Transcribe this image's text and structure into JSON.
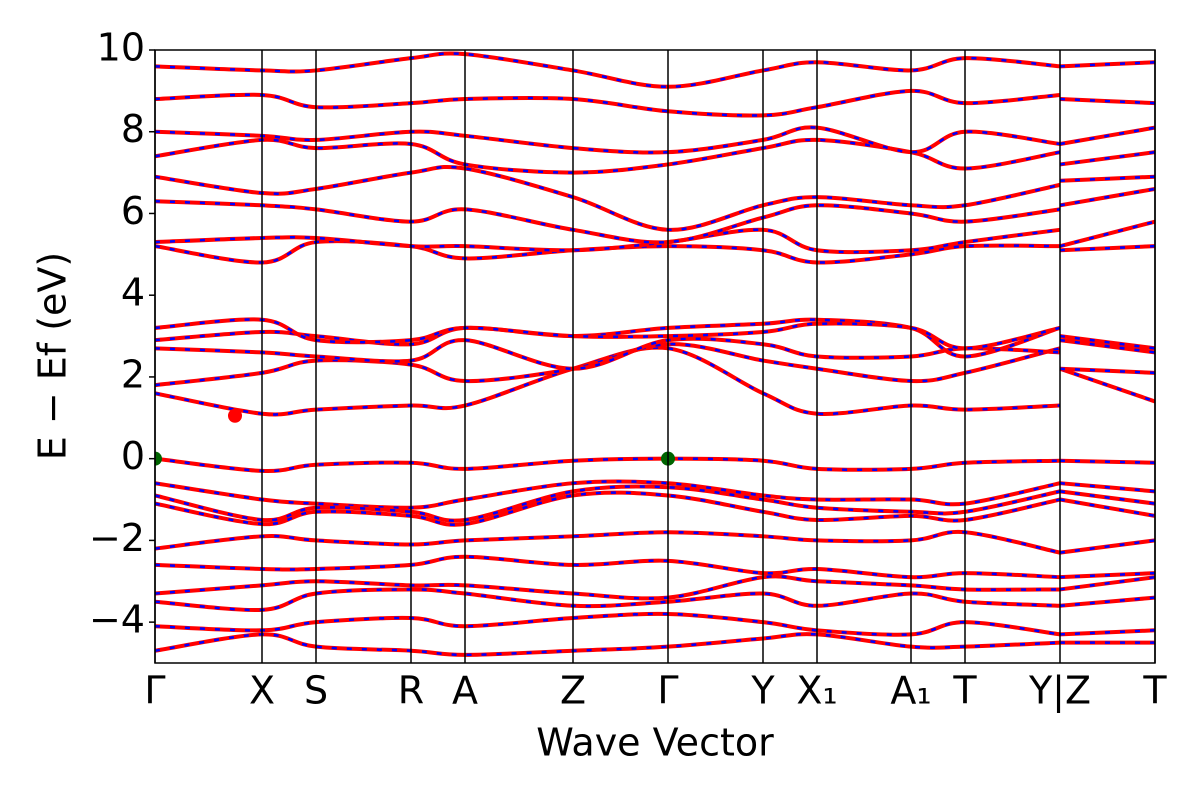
{
  "chart_data": {
    "type": "band",
    "xlabel": "Wave Vector",
    "ylabel": "E − Ef (eV)",
    "xlim": [
      0,
      10
    ],
    "ylim": [
      -5,
      10
    ],
    "yticks": [
      {
        "value": -4,
        "label": "−4"
      },
      {
        "value": -2,
        "label": "−2"
      },
      0,
      2,
      4,
      6,
      8,
      10
    ],
    "xticks": [
      {
        "value": 0,
        "label": "Γ"
      },
      {
        "value": 1.07,
        "label": "X"
      },
      {
        "value": 1.61,
        "label": "S"
      },
      {
        "value": 2.56,
        "label": "R"
      },
      {
        "value": 3.1,
        "label": "A"
      },
      {
        "value": 4.18,
        "label": "Z"
      },
      {
        "value": 5.13,
        "label": "Γ"
      },
      {
        "value": 6.08,
        "label": "Y"
      },
      {
        "value": 6.62,
        "label": "X₁"
      },
      {
        "value": 7.56,
        "label": "A₁"
      },
      {
        "value": 8.1,
        "label": "T"
      },
      {
        "value": 9.05,
        "label": "Y|Z"
      },
      {
        "value": 10,
        "label": "T"
      }
    ],
    "line_color": "#ff0000",
    "dash_color": "#0000ff",
    "x": [
      0,
      1.07,
      1.61,
      2.56,
      3.1,
      4.18,
      5.13,
      6.08,
      6.62,
      7.56,
      8.1,
      9.05,
      9.05,
      10
    ],
    "series": [
      {
        "values": [
          0,
          -0.3,
          -0.15,
          -0.1,
          -0.25,
          -0.05,
          0,
          -0.05,
          -0.25,
          -0.25,
          -0.1,
          -0.05,
          -0.05,
          -0.1
        ]
      },
      {
        "values": [
          -0.6,
          -1.0,
          -1.1,
          -1.2,
          -1.0,
          -0.6,
          -0.6,
          -0.9,
          -1.0,
          -1.0,
          -1.1,
          -0.6,
          -0.6,
          -0.8
        ]
      },
      {
        "values": [
          -0.9,
          -1.5,
          -1.2,
          -1.3,
          -1.5,
          -0.8,
          -0.7,
          -1.0,
          -1.2,
          -1.3,
          -1.3,
          -0.8,
          -0.8,
          -1.1
        ]
      },
      {
        "values": [
          -1.1,
          -1.6,
          -1.3,
          -1.4,
          -1.6,
          -0.9,
          -0.9,
          -1.3,
          -1.5,
          -1.4,
          -1.5,
          -1.0,
          -1.0,
          -1.4
        ]
      },
      {
        "values": [
          -2.2,
          -1.9,
          -2.0,
          -2.1,
          -2.0,
          -1.9,
          -1.8,
          -1.9,
          -2.0,
          -2.0,
          -1.8,
          -2.3,
          -2.3,
          -2.0
        ]
      },
      {
        "values": [
          -2.6,
          -2.7,
          -2.7,
          -2.6,
          -2.4,
          -2.6,
          -2.5,
          -2.8,
          -2.7,
          -2.9,
          -2.8,
          -2.9,
          -2.9,
          -2.8
        ]
      },
      {
        "values": [
          -3.3,
          -3.1,
          -3.0,
          -3.1,
          -3.1,
          -3.3,
          -3.4,
          -2.9,
          -3.0,
          -3.1,
          -3.2,
          -3.2,
          -3.2,
          -2.9
        ]
      },
      {
        "values": [
          -3.5,
          -3.7,
          -3.3,
          -3.2,
          -3.3,
          -3.6,
          -3.5,
          -3.3,
          -3.6,
          -3.3,
          -3.5,
          -3.6,
          -3.6,
          -3.4
        ]
      },
      {
        "values": [
          -4.1,
          -4.2,
          -4.0,
          -3.9,
          -4.1,
          -3.9,
          -3.8,
          -4.0,
          -4.2,
          -4.3,
          -4.0,
          -4.3,
          -4.3,
          -4.2
        ]
      },
      {
        "values": [
          -4.7,
          -4.3,
          -4.6,
          -4.7,
          -4.8,
          -4.7,
          -4.6,
          -4.4,
          -4.3,
          -4.6,
          -4.6,
          -4.5,
          -4.5,
          -4.5
        ]
      },
      {
        "values": [
          1.6,
          1.1,
          1.2,
          1.3,
          1.3,
          2.2,
          2.7,
          1.6,
          1.1,
          1.3,
          1.2,
          1.3,
          2.2,
          1.4
        ]
      },
      {
        "values": [
          1.8,
          2.1,
          2.4,
          2.3,
          1.9,
          2.2,
          2.8,
          2.4,
          2.2,
          1.9,
          2.1,
          2.7,
          2.2,
          2.1
        ]
      },
      {
        "values": [
          2.7,
          2.6,
          2.5,
          2.4,
          2.9,
          2.2,
          2.9,
          2.8,
          2.5,
          2.5,
          2.7,
          2.6,
          2.9,
          2.7
        ]
      },
      {
        "values": [
          2.9,
          3.1,
          3.0,
          2.8,
          3.2,
          3.0,
          3.2,
          3.3,
          3.4,
          3.2,
          2.5,
          3.2,
          3.0,
          2.7
        ]
      },
      {
        "values": [
          3.2,
          3.4,
          2.9,
          2.9,
          3.2,
          3.0,
          3.0,
          3.1,
          3.3,
          3.2,
          2.7,
          3.2,
          2.9,
          2.6
        ]
      },
      {
        "values": [
          5.2,
          4.8,
          5.3,
          5.2,
          4.9,
          5.1,
          5.2,
          5.1,
          4.8,
          5.0,
          5.2,
          5.2,
          5.1,
          5.2
        ]
      },
      {
        "values": [
          5.3,
          5.4,
          5.4,
          5.2,
          5.2,
          5.1,
          5.3,
          5.6,
          5.1,
          5.1,
          5.3,
          5.6,
          5.2,
          5.8
        ]
      },
      {
        "values": [
          6.3,
          6.2,
          6.1,
          5.8,
          6.1,
          5.6,
          5.3,
          5.9,
          6.2,
          6.0,
          5.8,
          6.1,
          6.2,
          6.6
        ]
      },
      {
        "values": [
          6.9,
          6.5,
          6.6,
          7.0,
          7.1,
          6.4,
          5.6,
          6.2,
          6.4,
          6.2,
          6.2,
          6.7,
          6.8,
          6.9
        ]
      },
      {
        "values": [
          7.4,
          7.8,
          7.6,
          7.7,
          7.2,
          7.0,
          7.2,
          7.6,
          7.8,
          7.5,
          7.1,
          7.5,
          7.2,
          7.5
        ]
      },
      {
        "values": [
          8.0,
          7.9,
          7.8,
          8.0,
          7.9,
          7.6,
          7.5,
          7.8,
          8.1,
          7.5,
          8.0,
          7.7,
          7.7,
          8.1
        ]
      },
      {
        "values": [
          8.8,
          8.9,
          8.6,
          8.7,
          8.8,
          8.8,
          8.5,
          8.4,
          8.6,
          9.0,
          8.7,
          8.9,
          8.8,
          8.7
        ]
      },
      {
        "values": [
          9.6,
          9.5,
          9.5,
          9.8,
          9.9,
          9.5,
          9.1,
          9.5,
          9.7,
          9.5,
          9.8,
          9.6,
          9.6,
          9.7
        ]
      }
    ],
    "markers": [
      {
        "x": 0.8,
        "y": 1.05,
        "color": "#ff0000"
      },
      {
        "x": 0,
        "y": 0,
        "color": "#006400"
      },
      {
        "x": 5.13,
        "y": 0,
        "color": "#006400"
      }
    ]
  }
}
